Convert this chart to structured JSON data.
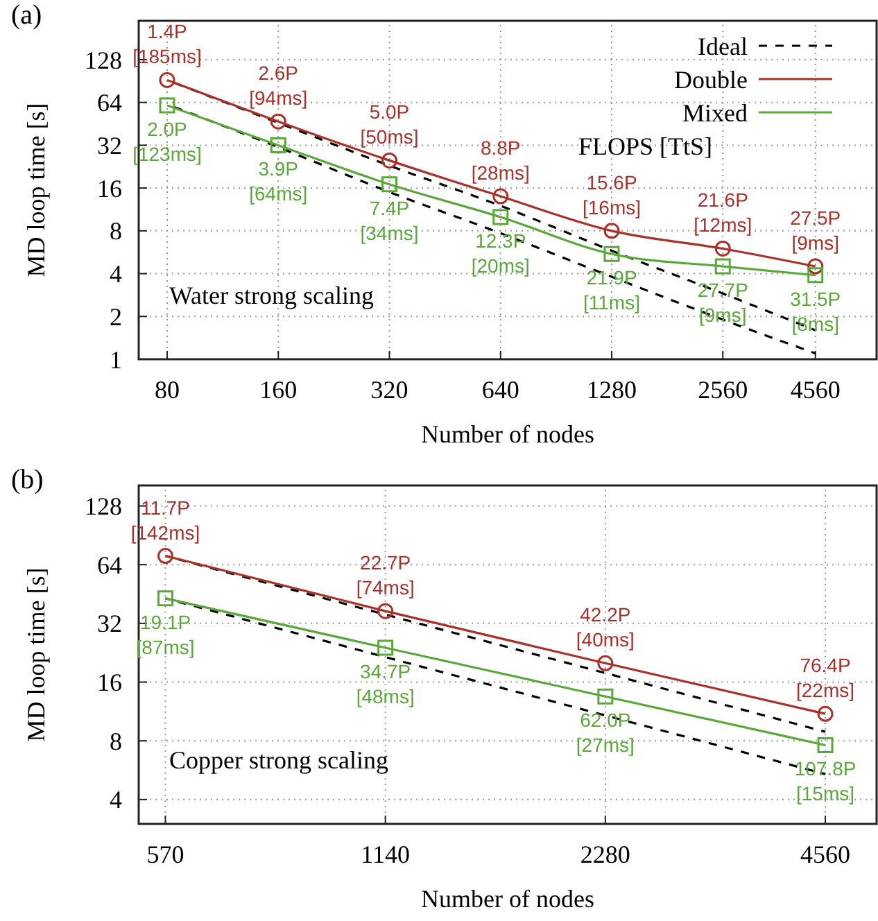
{
  "chart_data": [
    {
      "type": "line",
      "title": "(a)",
      "xlabel": "Number of nodes",
      "ylabel": "MD loop time [s]",
      "log": "xy",
      "grid": true,
      "legend": "top right",
      "x": [
        80,
        160,
        320,
        640,
        1280,
        2560,
        4560
      ],
      "xlim": [
        67,
        6680
      ],
      "xticks": [
        80,
        160,
        320,
        640,
        1280,
        2560,
        4560
      ],
      "ylim": [
        1,
        240
      ],
      "yticks": [
        1,
        2,
        4,
        8,
        16,
        32,
        64,
        128
      ],
      "series": [
        {
          "name": "Ideal",
          "color": "#000000",
          "line_style": "dashed",
          "marker": "none",
          "values": [
            92,
            46,
            23,
            12,
            5.8,
            2.9,
            1.6
          ]
        },
        {
          "color": "#000000",
          "line_style": "dashed",
          "marker": "none",
          "values": [
            62,
            31,
            15,
            7.7,
            3.8,
            1.9,
            1.1
          ]
        },
        {
          "name": "Double",
          "color": "#a8322a",
          "marker": "circle",
          "values": [
            92,
            47,
            25,
            14,
            8,
            6,
            4.5
          ]
        },
        {
          "name": "Mixed",
          "color": "#5aa83a",
          "marker": "square",
          "values": [
            61,
            32,
            17,
            10,
            5.5,
            4.5,
            3.9
          ]
        }
      ],
      "annotations": [
        "Water strong scaling",
        "FLOPS [TtS]",
        {
          "text": "1.4P [185ms]",
          "x": 80,
          "y": 92
        },
        {
          "text": "2.6P [94ms]",
          "x": 160,
          "y": 47
        },
        {
          "text": "5.0P [50ms]",
          "x": 320,
          "y": 25
        },
        {
          "text": "8.8P [28ms]",
          "x": 640,
          "y": 14
        },
        {
          "text": "15.6P [16ms]",
          "x": 1280,
          "y": 8
        },
        {
          "text": "21.6P [12ms]",
          "x": 2560,
          "y": 6
        },
        {
          "text": "27.5P [9ms]",
          "x": 4560,
          "y": 4.5
        },
        {
          "text": "2.0P [123ms]",
          "x": 80,
          "y": 61
        },
        {
          "text": "3.9P [64ms]",
          "x": 160,
          "y": 32
        },
        {
          "text": "7.4P [34ms]",
          "x": 320,
          "y": 17
        },
        {
          "text": "12.3P [20ms]",
          "x": 640,
          "y": 10
        },
        {
          "text": "21.9P [11ms]",
          "x": 1280,
          "y": 5.5
        },
        {
          "text": "27.7P [9ms]",
          "x": 2560,
          "y": 4.5
        },
        {
          "text": "31.5P [8ms]",
          "x": 4560,
          "y": 3.9
        }
      ]
    },
    {
      "type": "line",
      "title": "(b)",
      "xlabel": "Number of nodes",
      "ylabel": "MD loop time [s]",
      "log": "xy",
      "grid": true,
      "legend": false,
      "x": [
        570,
        1140,
        2280,
        4560
      ],
      "xlim": [
        524,
        5360
      ],
      "xticks": [
        570,
        1140,
        2280,
        4560
      ],
      "ylim": [
        3,
        163
      ],
      "yticks": [
        4,
        8,
        16,
        32,
        64,
        128
      ],
      "series": [
        {
          "color": "#000000",
          "line_style": "dashed",
          "marker": "none",
          "values": [
            71,
            35.5,
            17.8,
            8.9
          ]
        },
        {
          "color": "#000000",
          "line_style": "dashed",
          "marker": "none",
          "values": [
            43,
            21.5,
            10.8,
            5.4
          ]
        },
        {
          "color": "#a8322a",
          "marker": "circle",
          "values": [
            71,
            37,
            20,
            11
          ]
        },
        {
          "color": "#5aa83a",
          "marker": "square",
          "values": [
            43,
            24,
            13.5,
            7.6
          ]
        }
      ],
      "annotations": [
        "Copper strong scaling",
        {
          "text": "11.7P [142ms]",
          "x": 570,
          "y": 71
        },
        {
          "text": "22.7P [74ms]",
          "x": 1140,
          "y": 37
        },
        {
          "text": "42.2P [40ms]",
          "x": 2280,
          "y": 20
        },
        {
          "text": "76.4P [22ms]",
          "x": 4560,
          "y": 11
        },
        {
          "text": "19.1P [87ms]",
          "x": 570,
          "y": 43
        },
        {
          "text": "34.7P [48ms]",
          "x": 1140,
          "y": 24
        },
        {
          "text": "62.0P [27ms]",
          "x": 2280,
          "y": 13.5
        },
        {
          "text": "107.8P [15ms]",
          "x": 4560,
          "y": 7.6
        }
      ]
    }
  ]
}
